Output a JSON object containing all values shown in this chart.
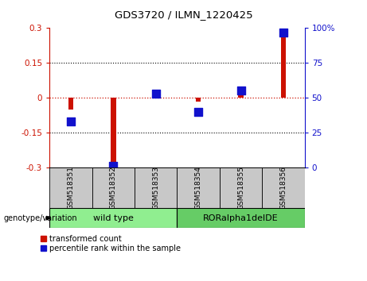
{
  "title": "GDS3720 / ILMN_1220425",
  "samples": [
    "GSM518351",
    "GSM518352",
    "GSM518353",
    "GSM518354",
    "GSM518355",
    "GSM518356"
  ],
  "transformed_count": [
    -0.05,
    -0.295,
    0.01,
    -0.018,
    0.01,
    0.295
  ],
  "percentile_rank_raw": [
    33,
    1,
    53,
    40,
    55,
    97
  ],
  "ylim_left": [
    -0.3,
    0.3
  ],
  "ylim_right": [
    0,
    100
  ],
  "yticks_left": [
    -0.3,
    -0.15,
    0,
    0.15,
    0.3
  ],
  "yticks_right": [
    0,
    25,
    50,
    75,
    100
  ],
  "bar_color_red": "#CC1100",
  "bar_color_blue": "#1111CC",
  "genotype_groups": [
    {
      "label": "wild type",
      "samples": [
        0,
        1,
        2
      ],
      "color": "#90EE90"
    },
    {
      "label": "RORalpha1delDE",
      "samples": [
        3,
        4,
        5
      ],
      "color": "#66CC66"
    }
  ],
  "genotype_label": "genotype/variation",
  "legend_red": "transformed count",
  "legend_blue": "percentile rank within the sample",
  "tick_label_bg": "#c8c8c8",
  "red_bar_width": 0.12,
  "blue_marker_size": 50
}
